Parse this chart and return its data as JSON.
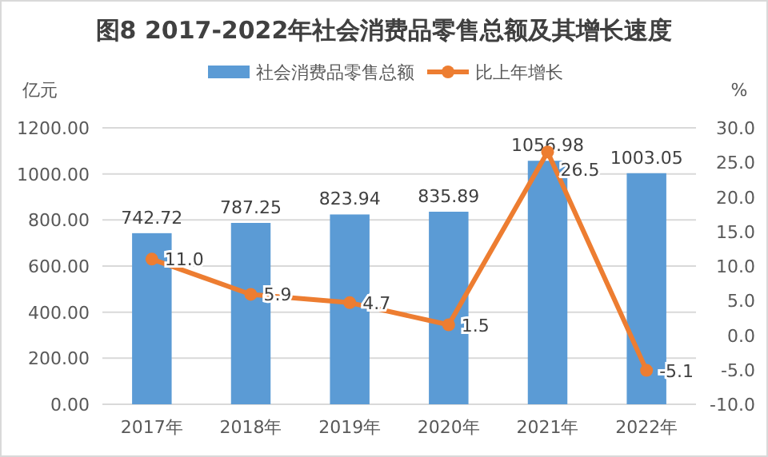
{
  "chart_data": {
    "type": "bar",
    "title": "图8  2017-2022年社会消费品零售总额及其增长速度",
    "ylabel": "亿元",
    "y2label": "%",
    "categories": [
      "2017年",
      "2018年",
      "2019年",
      "2020年",
      "2021年",
      "2022年"
    ],
    "series": [
      {
        "name": "社会消费品零售总额",
        "color": "#5b9bd5",
        "values": [
          742.72,
          787.25,
          823.94,
          835.89,
          1056.98,
          1003.05
        ],
        "value_labels": [
          "742.72",
          "787.25",
          "823.94",
          "835.89",
          "1056.98",
          "1003.05"
        ]
      },
      {
        "name": "比上年增长",
        "type": "line",
        "axis": "y2",
        "color": "#ed7d31",
        "marker": "circle",
        "values": [
          11.0,
          5.9,
          4.7,
          1.5,
          26.5,
          -5.1
        ],
        "value_labels": [
          "11.0",
          "5.9",
          "4.7",
          "1.5",
          "26.5",
          "-5.1"
        ]
      }
    ],
    "ylim": [
      0,
      1200
    ],
    "yticks": [
      {
        "value": 0,
        "label": "0.00"
      },
      {
        "value": 200,
        "label": "200.00"
      },
      {
        "value": 400,
        "label": "400.00"
      },
      {
        "value": 600,
        "label": "600.00"
      },
      {
        "value": 800,
        "label": "800.00"
      },
      {
        "value": 1000,
        "label": "1000.00"
      },
      {
        "value": 1200,
        "label": "1200.00"
      }
    ],
    "y2lim": [
      -10,
      30
    ],
    "y2ticks": [
      {
        "value": -10,
        "label": "-10.0"
      },
      {
        "value": -5,
        "label": "-5.0"
      },
      {
        "value": 0,
        "label": "0.0"
      },
      {
        "value": 5,
        "label": "5.0"
      },
      {
        "value": 10,
        "label": "10.0"
      },
      {
        "value": 15,
        "label": "15.0"
      },
      {
        "value": 20,
        "label": "20.0"
      },
      {
        "value": 25,
        "label": "25.0"
      },
      {
        "value": 30,
        "label": "30.0"
      }
    ],
    "grid": "y",
    "legend": "top"
  }
}
